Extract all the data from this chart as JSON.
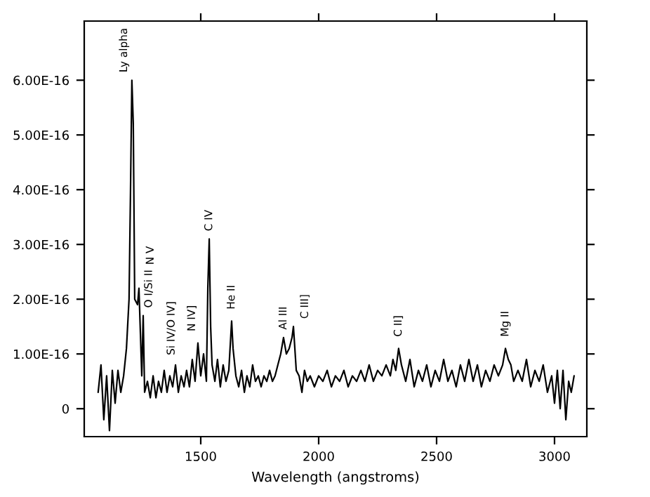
{
  "chart_data": {
    "type": "line",
    "xlabel": "Wavelength (angstroms)",
    "x": [
      1065,
      1077,
      1089,
      1101,
      1113,
      1125,
      1137,
      1149,
      1161,
      1173,
      1185,
      1196,
      1202,
      1208,
      1214,
      1220,
      1232,
      1238,
      1244,
      1250,
      1256,
      1262,
      1274,
      1286,
      1298,
      1310,
      1321,
      1333,
      1345,
      1357,
      1369,
      1381,
      1393,
      1405,
      1417,
      1429,
      1440,
      1452,
      1464,
      1476,
      1488,
      1500,
      1512,
      1524,
      1530,
      1536,
      1542,
      1548,
      1560,
      1571,
      1583,
      1595,
      1607,
      1619,
      1631,
      1637,
      1649,
      1661,
      1673,
      1685,
      1696,
      1708,
      1720,
      1732,
      1744,
      1756,
      1768,
      1780,
      1792,
      1804,
      1815,
      1827,
      1839,
      1851,
      1863,
      1875,
      1887,
      1893,
      1905,
      1917,
      1929,
      1940,
      1952,
      1964,
      1982,
      2000,
      2018,
      2036,
      2054,
      2071,
      2089,
      2107,
      2125,
      2143,
      2161,
      2179,
      2196,
      2214,
      2232,
      2250,
      2268,
      2286,
      2304,
      2315,
      2327,
      2339,
      2351,
      2369,
      2387,
      2405,
      2423,
      2440,
      2458,
      2476,
      2494,
      2512,
      2530,
      2548,
      2565,
      2583,
      2601,
      2619,
      2637,
      2655,
      2673,
      2690,
      2708,
      2726,
      2744,
      2762,
      2780,
      2792,
      2804,
      2815,
      2827,
      2845,
      2863,
      2881,
      2899,
      2917,
      2935,
      2952,
      2970,
      2988,
      3000,
      3012,
      3024,
      3036,
      3048,
      3060,
      3071,
      3083
    ],
    "series": [
      {
        "color": "#000000",
        "values": [
          3e-17,
          8e-17,
          -2e-17,
          6e-17,
          -4e-17,
          7e-17,
          1e-17,
          7e-17,
          3e-17,
          6e-17,
          1.1e-16,
          2e-16,
          3.9e-16,
          6e-16,
          5.2e-16,
          2e-16,
          1.9e-16,
          2.2e-16,
          1.4e-16,
          6e-17,
          1.7e-16,
          3e-17,
          5e-17,
          2e-17,
          6e-17,
          2e-17,
          5e-17,
          3e-17,
          7e-17,
          3e-17,
          6e-17,
          4e-17,
          8e-17,
          3e-17,
          6e-17,
          4e-17,
          7e-17,
          4e-17,
          9e-17,
          5e-17,
          1.2e-16,
          6e-17,
          1e-16,
          5e-17,
          2.2e-16,
          3.1e-16,
          1.5e-16,
          8e-17,
          5e-17,
          9e-17,
          4e-17,
          8e-17,
          5e-17,
          7e-17,
          1.6e-16,
          1.1e-16,
          6e-17,
          4e-17,
          7e-17,
          3e-17,
          6e-17,
          4e-17,
          8e-17,
          5e-17,
          6e-17,
          4e-17,
          6e-17,
          5e-17,
          7e-17,
          5e-17,
          6e-17,
          8e-17,
          1e-16,
          1.3e-16,
          1e-16,
          1.1e-16,
          1.3e-16,
          1.5e-16,
          7e-17,
          6e-17,
          3e-17,
          7e-17,
          5e-17,
          6e-17,
          4e-17,
          6e-17,
          5e-17,
          7e-17,
          4e-17,
          6e-17,
          5e-17,
          7e-17,
          4e-17,
          6e-17,
          5e-17,
          7e-17,
          5e-17,
          8e-17,
          5e-17,
          7e-17,
          6e-17,
          8e-17,
          6e-17,
          9e-17,
          7e-17,
          1.1e-16,
          8e-17,
          5e-17,
          9e-17,
          4e-17,
          7e-17,
          5e-17,
          8e-17,
          4e-17,
          7e-17,
          5e-17,
          9e-17,
          5e-17,
          7e-17,
          4e-17,
          8e-17,
          5e-17,
          9e-17,
          5e-17,
          8e-17,
          4e-17,
          7e-17,
          5e-17,
          8e-17,
          6e-17,
          8e-17,
          1.1e-16,
          9e-17,
          8e-17,
          5e-17,
          7e-17,
          5e-17,
          9e-17,
          4e-17,
          7e-17,
          5e-17,
          8e-17,
          3e-17,
          6e-17,
          1e-17,
          7e-17,
          0.0,
          7e-17,
          -2e-17,
          5e-17,
          3e-17,
          6e-17
        ]
      }
    ],
    "xlim": [
      1006,
      3137
    ],
    "xticks": [
      1500,
      2000,
      2500,
      3000
    ],
    "ylim": [
      -5.1e-17,
      7.08e-16
    ],
    "yticks": [
      0,
      {
        "value": 1e-16,
        "label": "1.00E-16"
      },
      {
        "value": 2e-16,
        "label": "2.00E-16"
      },
      {
        "value": 3e-16,
        "label": "3.00E-16"
      },
      {
        "value": 4e-16,
        "label": "4.00E-16"
      },
      {
        "value": 5e-16,
        "label": "5.00E-16"
      },
      {
        "value": 6e-16,
        "label": "6.00E-16"
      }
    ],
    "grid": false,
    "annotations": [
      {
        "text": "Ly alpha",
        "x": 1208,
        "y": 6e-16
      },
      {
        "text": "N V",
        "x": 1238,
        "y": 2.2e-16
      },
      {
        "text": "O I/Si II",
        "x": 1256,
        "y": 1.7e-16
      },
      {
        "text": "Si IV/O IV]",
        "x": 1393,
        "y": 8e-17
      },
      {
        "text": "N IV]",
        "x": 1488,
        "y": 1.2e-16
      },
      {
        "text": "C IV",
        "x": 1536,
        "y": 3.1e-16
      },
      {
        "text": "He II",
        "x": 1631,
        "y": 1.6e-16
      },
      {
        "text": "Al III",
        "x": 1851,
        "y": 1.3e-16
      },
      {
        "text": "C III]",
        "x": 1893,
        "y": 1.5e-16
      },
      {
        "text": "C II]",
        "x": 2339,
        "y": 1.1e-16
      },
      {
        "text": "Mg II",
        "x": 2792,
        "y": 1.1e-16
      }
    ]
  }
}
